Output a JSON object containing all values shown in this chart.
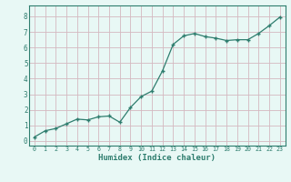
{
  "x": [
    0,
    1,
    2,
    3,
    4,
    5,
    6,
    7,
    8,
    9,
    10,
    11,
    12,
    13,
    14,
    15,
    16,
    17,
    18,
    19,
    20,
    21,
    22,
    23
  ],
  "y": [
    0.25,
    0.65,
    0.8,
    1.1,
    1.4,
    1.35,
    1.55,
    1.6,
    1.2,
    2.15,
    2.85,
    3.2,
    4.5,
    6.2,
    6.75,
    6.9,
    6.7,
    6.6,
    6.45,
    6.5,
    6.5,
    6.9,
    7.4,
    7.95
  ],
  "xlabel": "Humidex (Indice chaleur)",
  "xlim": [
    -0.5,
    23.5
  ],
  "ylim": [
    -0.3,
    8.7
  ],
  "yticks": [
    0,
    1,
    2,
    3,
    4,
    5,
    6,
    7,
    8
  ],
  "xticks": [
    0,
    1,
    2,
    3,
    4,
    5,
    6,
    7,
    8,
    9,
    10,
    11,
    12,
    13,
    14,
    15,
    16,
    17,
    18,
    19,
    20,
    21,
    22,
    23
  ],
  "line_color": "#2e7d6e",
  "marker_color": "#2e7d6e",
  "bg_color": "#e8f8f5",
  "grid_color_v": "#d4b8c0",
  "grid_color_h": "#d4b8c0",
  "axis_color": "#2e7d6e",
  "label_color": "#2e7d6e",
  "tick_color": "#2e7d6e",
  "font_family": "monospace",
  "xlabel_fontsize": 6.5,
  "ytick_fontsize": 5.5,
  "xtick_fontsize": 4.8
}
